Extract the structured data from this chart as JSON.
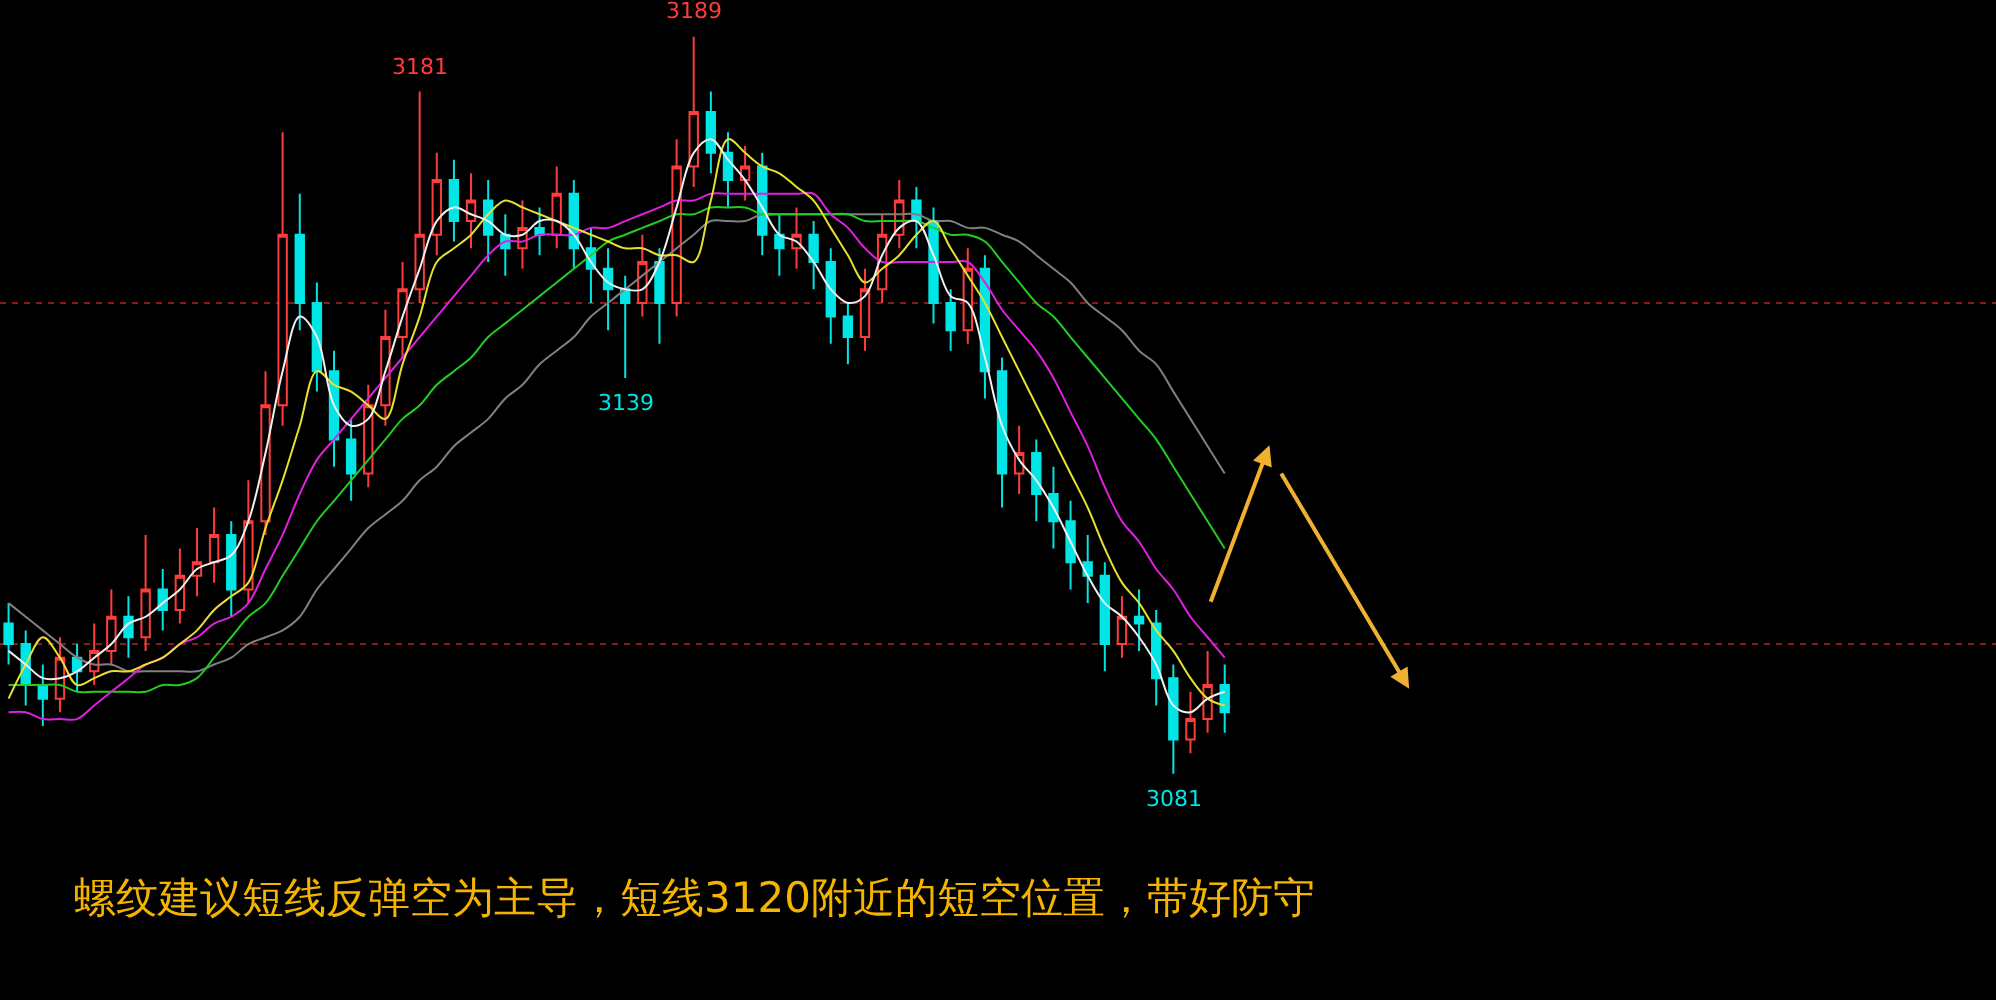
{
  "chart_data": {
    "type": "candlestick",
    "categories": [
      null,
      null,
      null,
      null,
      null,
      null,
      null,
      null,
      null,
      null,
      null,
      null,
      null,
      null,
      null,
      null,
      null,
      null,
      null,
      null,
      null,
      null,
      null,
      null,
      null,
      null,
      null,
      null,
      null,
      null,
      null,
      null,
      null,
      null,
      null,
      null,
      null,
      null,
      null,
      null,
      null,
      null,
      null,
      null,
      null,
      null,
      null,
      null,
      null,
      null,
      null,
      null,
      null,
      null,
      null,
      null,
      null,
      null,
      null,
      null,
      null,
      null,
      null,
      null,
      null,
      null,
      null,
      null,
      null,
      null,
      null,
      null
    ],
    "ohlc": [
      [
        3103,
        3106,
        3097,
        3100
      ],
      [
        3100,
        3102,
        3091,
        3094
      ],
      [
        3094,
        3097,
        3088,
        3092
      ],
      [
        3092,
        3101,
        3090,
        3098
      ],
      [
        3098,
        3100,
        3093,
        3096
      ],
      [
        3096,
        3103,
        3094,
        3099
      ],
      [
        3099,
        3108,
        3097,
        3104
      ],
      [
        3104,
        3107,
        3098,
        3101
      ],
      [
        3101,
        3116,
        3099,
        3108
      ],
      [
        3108,
        3111,
        3102,
        3105
      ],
      [
        3105,
        3114,
        3103,
        3110
      ],
      [
        3110,
        3117,
        3107,
        3112
      ],
      [
        3112,
        3120,
        3109,
        3116
      ],
      [
        3116,
        3118,
        3104,
        3108
      ],
      [
        3108,
        3124,
        3106,
        3118
      ],
      [
        3118,
        3140,
        3116,
        3135
      ],
      [
        3135,
        3175,
        3132,
        3160
      ],
      [
        3160,
        3166,
        3146,
        3150
      ],
      [
        3150,
        3153,
        3137,
        3140
      ],
      [
        3140,
        3143,
        3126,
        3130
      ],
      [
        3130,
        3133,
        3121,
        3125
      ],
      [
        3125,
        3138,
        3123,
        3135
      ],
      [
        3135,
        3149,
        3132,
        3145
      ],
      [
        3145,
        3156,
        3142,
        3152
      ],
      [
        3152,
        3181,
        3150,
        3160
      ],
      [
        3160,
        3172,
        3157,
        3168
      ],
      [
        3168,
        3171,
        3159,
        3162
      ],
      [
        3162,
        3169,
        3158,
        3165
      ],
      [
        3165,
        3168,
        3156,
        3160
      ],
      [
        3160,
        3163,
        3154,
        3158
      ],
      [
        3158,
        3165,
        3155,
        3161
      ],
      [
        3161,
        3164,
        3157,
        3160
      ],
      [
        3160,
        3170,
        3158,
        3166
      ],
      [
        3166,
        3168,
        3155,
        3158
      ],
      [
        3158,
        3161,
        3150,
        3155
      ],
      [
        3155,
        3158,
        3146,
        3152
      ],
      [
        3152,
        3154,
        3139,
        3150
      ],
      [
        3150,
        3160,
        3148,
        3156
      ],
      [
        3156,
        3158,
        3144,
        3150
      ],
      [
        3150,
        3174,
        3148,
        3170
      ],
      [
        3170,
        3189,
        3167,
        3178
      ],
      [
        3178,
        3181,
        3169,
        3172
      ],
      [
        3172,
        3175,
        3164,
        3168
      ],
      [
        3168,
        3173,
        3165,
        3170
      ],
      [
        3170,
        3172,
        3157,
        3160
      ],
      [
        3160,
        3163,
        3154,
        3158
      ],
      [
        3158,
        3164,
        3155,
        3160
      ],
      [
        3160,
        3162,
        3152,
        3156
      ],
      [
        3156,
        3158,
        3144,
        3148
      ],
      [
        3148,
        3150,
        3141,
        3145
      ],
      [
        3145,
        3155,
        3143,
        3152
      ],
      [
        3152,
        3163,
        3150,
        3160
      ],
      [
        3160,
        3168,
        3158,
        3165
      ],
      [
        3165,
        3167,
        3158,
        3162
      ],
      [
        3162,
        3164,
        3147,
        3150
      ],
      [
        3150,
        3152,
        3143,
        3146
      ],
      [
        3146,
        3158,
        3144,
        3155
      ],
      [
        3155,
        3157,
        3136,
        3140
      ],
      [
        3140,
        3142,
        3120,
        3125
      ],
      [
        3125,
        3132,
        3122,
        3128
      ],
      [
        3128,
        3130,
        3118,
        3122
      ],
      [
        3122,
        3126,
        3114,
        3118
      ],
      [
        3118,
        3121,
        3108,
        3112
      ],
      [
        3112,
        3116,
        3106,
        3110
      ],
      [
        3110,
        3112,
        3096,
        3100
      ],
      [
        3100,
        3107,
        3098,
        3104
      ],
      [
        3104,
        3108,
        3099,
        3103
      ],
      [
        3103,
        3105,
        3091,
        3095
      ],
      [
        3095,
        3097,
        3081,
        3086
      ],
      [
        3086,
        3093,
        3084,
        3089
      ],
      [
        3089,
        3099,
        3087,
        3094
      ],
      [
        3094,
        3097,
        3087,
        3090
      ]
    ],
    "colors": [
      "#00e5e5",
      "#00e5e5",
      "#00e5e5",
      "#ff3c3c",
      "#00e5e5",
      "#ff3c3c",
      "#ff3c3c",
      "#00e5e5",
      "#ff3c3c",
      "#00e5e5",
      "#ff3c3c",
      "#ff3c3c",
      "#ff3c3c",
      "#00e5e5",
      "#ff3c3c",
      "#ff3c3c",
      "#ff3c3c",
      "#00e5e5",
      "#00e5e5",
      "#00e5e5",
      "#00e5e5",
      "#ff3c3c",
      "#ff3c3c",
      "#ff3c3c",
      "#ff3c3c",
      "#ff3c3c",
      "#00e5e5",
      "#ff3c3c",
      "#00e5e5",
      "#00e5e5",
      "#ff3c3c",
      "#00e5e5",
      "#ff3c3c",
      "#00e5e5",
      "#00e5e5",
      "#00e5e5",
      "#00e5e5",
      "#ff3c3c",
      "#00e5e5",
      "#ff3c3c",
      "#ff3c3c",
      "#00e5e5",
      "#00e5e5",
      "#ff3c3c",
      "#00e5e5",
      "#00e5e5",
      "#ff3c3c",
      "#00e5e5",
      "#00e5e5",
      "#00e5e5",
      "#ff3c3c",
      "#ff3c3c",
      "#ff3c3c",
      "#00e5e5",
      "#00e5e5",
      "#00e5e5",
      "#ff3c3c",
      "#00e5e5",
      "#00e5e5",
      "#ff3c3c",
      "#00e5e5",
      "#00e5e5",
      "#00e5e5",
      "#00e5e5",
      "#00e5e5",
      "#ff3c3c",
      "#00e5e5",
      "#00e5e5",
      "#00e5e5",
      "#ff3c3c",
      "#ff3c3c",
      "#00e5e5"
    ],
    "series": [
      {
        "type": "line",
        "color": "#808080",
        "values": [
          3106,
          3104,
          3102,
          3100,
          3098,
          3097,
          3097,
          3096,
          3096,
          3096,
          3096,
          3096,
          3097,
          3098,
          3100,
          3101,
          3102,
          3104,
          3108,
          3111,
          3114,
          3117,
          3119,
          3121,
          3124,
          3126,
          3129,
          3131,
          3133,
          3136,
          3138,
          3141,
          3143,
          3145,
          3148,
          3150,
          3152,
          3154,
          3156,
          3158,
          3160,
          3162,
          3162,
          3162,
          3163,
          3163,
          3163,
          3163,
          3163,
          3163,
          3163,
          3163,
          3163,
          3163,
          3162,
          3162,
          3161,
          3161,
          3160,
          3159,
          3157,
          3155,
          3153,
          3150,
          3148,
          3146,
          3143,
          3141,
          3137,
          3133,
          3129,
          3125
        ]
      },
      {
        "type": "line",
        "color": "#22cc22",
        "values": [
          3094,
          3094,
          3094,
          3094,
          3093,
          3093,
          3093,
          3093,
          3093,
          3094,
          3094,
          3095,
          3098,
          3101,
          3104,
          3106,
          3110,
          3114,
          3118,
          3121,
          3124,
          3127,
          3130,
          3133,
          3135,
          3138,
          3140,
          3142,
          3145,
          3147,
          3149,
          3151,
          3153,
          3155,
          3157,
          3159,
          3160,
          3161,
          3162,
          3163,
          3163,
          3164,
          3164,
          3164,
          3163,
          3163,
          3163,
          3163,
          3163,
          3163,
          3162,
          3162,
          3162,
          3162,
          3161,
          3160,
          3160,
          3159,
          3156,
          3153,
          3150,
          3148,
          3145,
          3142,
          3139,
          3136,
          3133,
          3130,
          3126,
          3122,
          3118,
          3114
        ]
      },
      {
        "type": "line",
        "color": "#e020e0",
        "values": [
          3090,
          3090,
          3089,
          3089,
          3089,
          3091,
          3093,
          3095,
          3097,
          3098,
          3100,
          3101,
          3103,
          3104,
          3106,
          3111,
          3116,
          3122,
          3127,
          3130,
          3133,
          3136,
          3139,
          3142,
          3145,
          3148,
          3151,
          3154,
          3157,
          3159,
          3159,
          3160,
          3160,
          3160,
          3161,
          3161,
          3162,
          3163,
          3164,
          3165,
          3165,
          3166,
          3166,
          3166,
          3166,
          3166,
          3166,
          3166,
          3163,
          3161,
          3158,
          3156,
          3156,
          3156,
          3156,
          3156,
          3156,
          3153,
          3149,
          3146,
          3143,
          3139,
          3134,
          3129,
          3123,
          3118,
          3115,
          3111,
          3108,
          3104,
          3101,
          3098
        ]
      },
      {
        "type": "line",
        "color": "#e8e030",
        "values": [
          3092,
          3097,
          3101,
          3098,
          3094,
          3095,
          3096,
          3096,
          3097,
          3098,
          3100,
          3102,
          3105,
          3107,
          3109,
          3117,
          3124,
          3132,
          3140,
          3138,
          3137,
          3135,
          3133,
          3141,
          3148,
          3156,
          3158,
          3160,
          3163,
          3165,
          3164,
          3163,
          3162,
          3161,
          3160,
          3159,
          3158,
          3158,
          3157,
          3157,
          3156,
          3165,
          3174,
          3172,
          3170,
          3169,
          3167,
          3165,
          3161,
          3157,
          3153,
          3155,
          3157,
          3160,
          3162,
          3158,
          3154,
          3150,
          3145,
          3140,
          3135,
          3130,
          3125,
          3120,
          3114,
          3109,
          3106,
          3102,
          3099,
          3095,
          3092,
          3091
        ]
      },
      {
        "type": "line",
        "color": "#f0f0f0",
        "values": [
          3099,
          3097,
          3095,
          3095,
          3096,
          3098,
          3100,
          3103,
          3104,
          3106,
          3108,
          3111,
          3112,
          3113,
          3118,
          3128,
          3140,
          3148,
          3145,
          3135,
          3132,
          3133,
          3140,
          3148,
          3155,
          3162,
          3164,
          3163,
          3162,
          3160,
          3160,
          3162,
          3162,
          3160,
          3156,
          3153,
          3152,
          3152,
          3156,
          3164,
          3172,
          3174,
          3171,
          3168,
          3164,
          3160,
          3159,
          3156,
          3152,
          3150,
          3151,
          3157,
          3161,
          3162,
          3157,
          3151,
          3150,
          3142,
          3132,
          3127,
          3124,
          3120,
          3115,
          3110,
          3106,
          3104,
          3101,
          3097,
          3091,
          3090,
          3092,
          3093
        ]
      }
    ],
    "ref_lines": [
      {
        "axis": "y",
        "value": 3150,
        "color": "#8b1a1a",
        "line_style": "dotted"
      },
      {
        "axis": "y",
        "value": 3100,
        "color": "#8b1a1a",
        "line_style": "dotted"
      }
    ],
    "annotations": [
      {
        "text": "3181",
        "y": 3181
      },
      {
        "text": "3189",
        "y": 3189
      },
      {
        "text": "3139",
        "y": 3139
      },
      {
        "text": "3081",
        "y": 3081
      },
      "螺纹建议短线反弹空为主导，短线3120附近的短空位置，带好防守"
    ],
    "grid": false,
    "tick_labels": false
  }
}
